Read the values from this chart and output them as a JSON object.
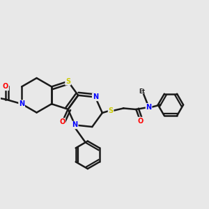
{
  "background_color": "#e8e8e8",
  "bond_color": "#1a1a1a",
  "atom_colors": {
    "S": "#cccc00",
    "N": "#0000ff",
    "O": "#ff0000",
    "C": "#1a1a1a"
  },
  "figsize": [
    3.0,
    3.0
  ],
  "dpi": 100
}
